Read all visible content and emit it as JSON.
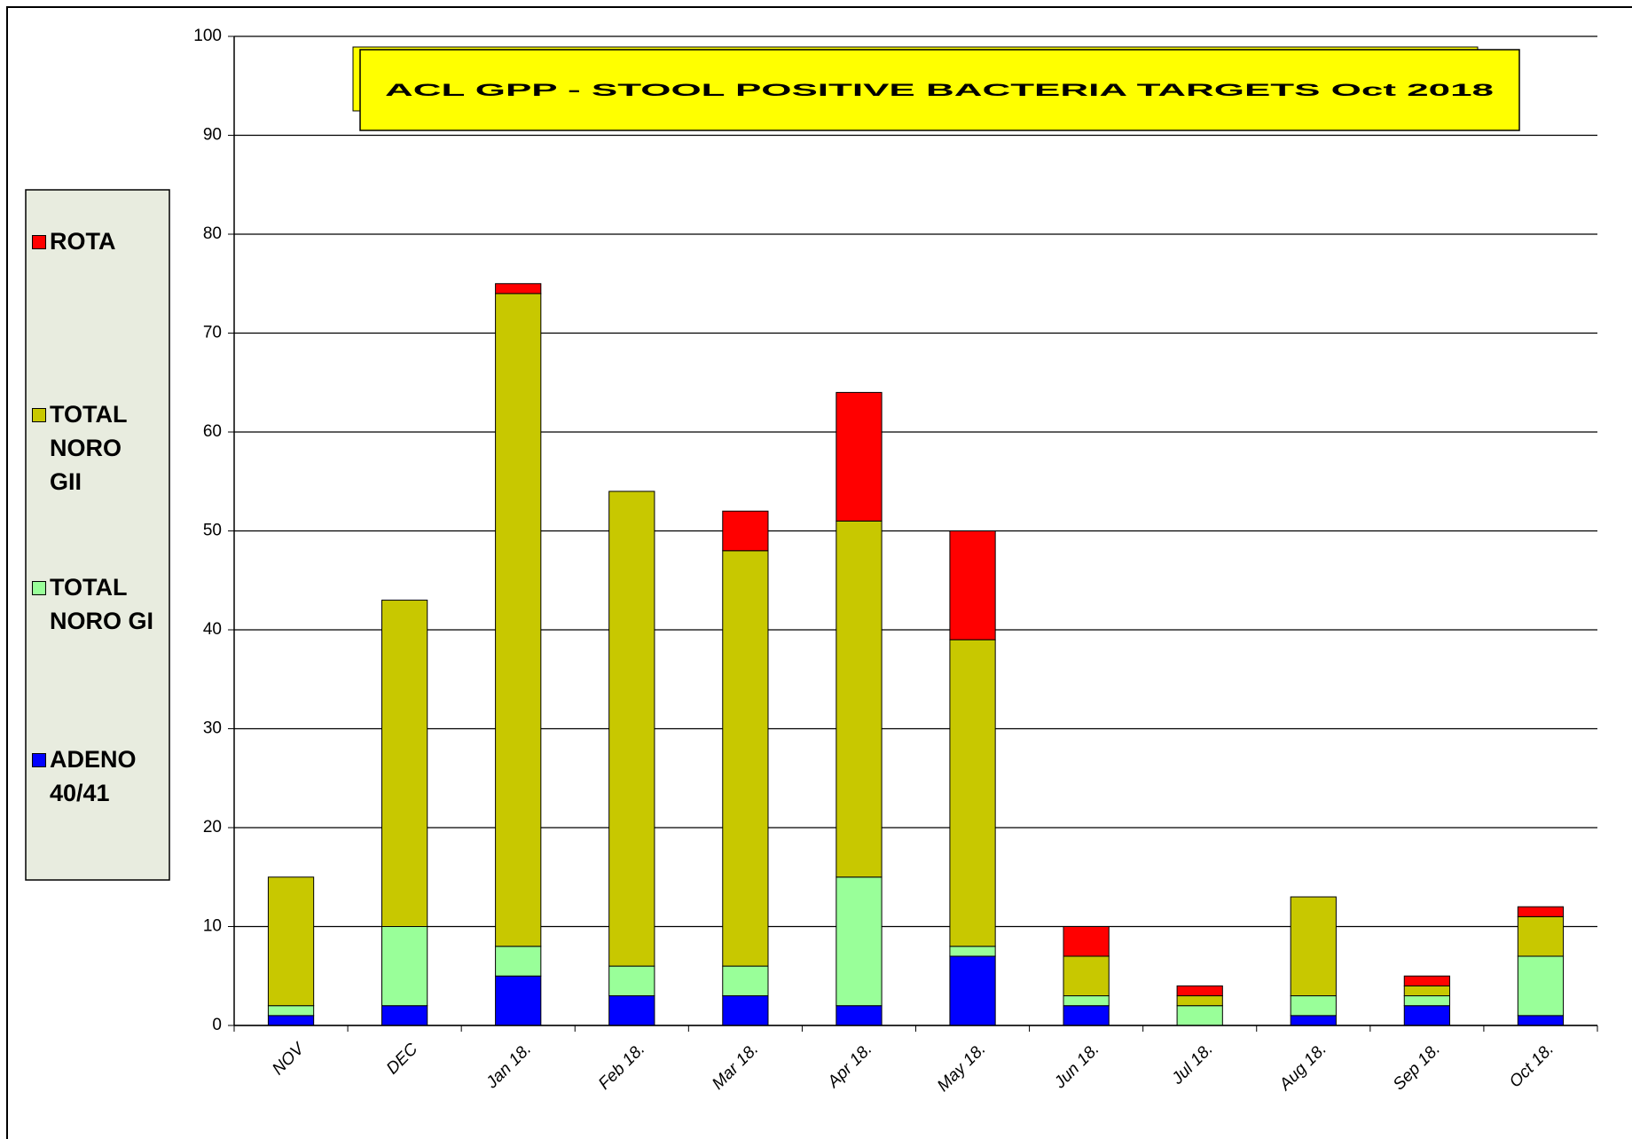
{
  "chart_data": {
    "type": "stacked-bar",
    "title": "ACL GPP - STOOL POSITIVE BACTERIA TARGETS Oct 2018",
    "categories": [
      "NOV",
      "DEC",
      "Jan 18.",
      "Feb 18.",
      "Mar 18.",
      "Apr 18.",
      "May 18.",
      "Jun 18.",
      "Jul 18.",
      "Aug 18.",
      "Sep 18.",
      "Oct 18."
    ],
    "series": [
      {
        "name": "ADENO 40/41",
        "color": "#0000ff",
        "values": [
          1,
          2,
          5,
          3,
          3,
          2,
          7,
          2,
          0,
          1,
          2,
          1
        ]
      },
      {
        "name": "TOTAL NORO GI",
        "color": "#99ff99",
        "values": [
          1,
          8,
          3,
          3,
          3,
          13,
          1,
          1,
          2,
          2,
          1,
          6
        ]
      },
      {
        "name": "TOTAL NORO GII",
        "color": "#c8c800",
        "values": [
          13,
          33,
          66,
          48,
          42,
          36,
          31,
          4,
          1,
          10,
          1,
          4
        ]
      },
      {
        "name": "ROTA",
        "color": "#ff0000",
        "values": [
          0,
          0,
          1,
          0,
          4,
          13,
          11,
          3,
          1,
          0,
          1,
          1
        ]
      }
    ],
    "ylim": [
      0,
      100
    ],
    "yticks": [
      0,
      10,
      20,
      30,
      40,
      50,
      60,
      70,
      80,
      90,
      100
    ],
    "grid": true,
    "legend": "left"
  }
}
